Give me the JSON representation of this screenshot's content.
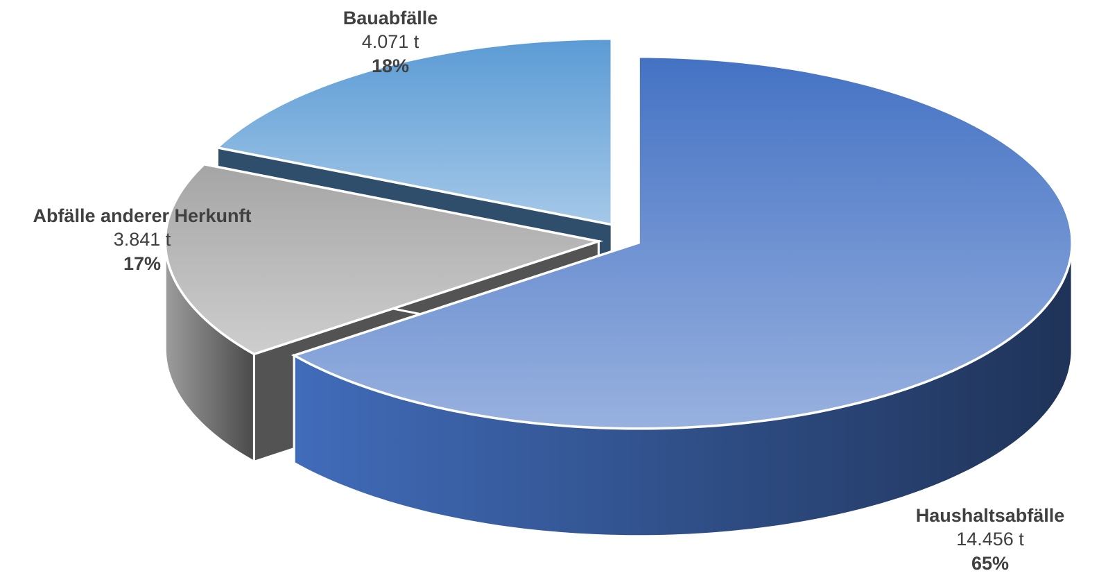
{
  "chart_data": {
    "type": "pie3d",
    "categories": [
      "Haushaltsabfälle",
      "Abfälle anderer Herkunft",
      "Bauabfälle"
    ],
    "values": [
      14456,
      3841,
      4071
    ],
    "value_labels": [
      "14.456 t",
      "3.841 t",
      "4.071 t"
    ],
    "percentages": [
      65,
      17,
      18
    ],
    "percentage_labels": [
      "65%",
      "17%",
      "18%"
    ],
    "colors": [
      "#4472c4",
      "#a5a5a5",
      "#5b9bd5"
    ]
  }
}
